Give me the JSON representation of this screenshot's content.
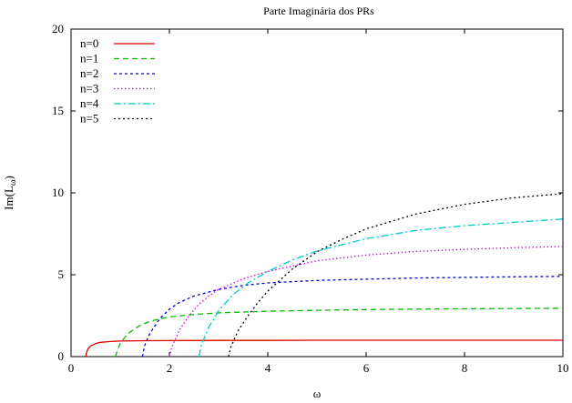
{
  "chart_data": {
    "type": "line",
    "title": "Parte Imaginária dos PRs",
    "xlabel": "ω",
    "ylabel": "Im(L",
    "ylabel_sub": "ω",
    "ylabel_close": ")",
    "xlim": [
      0,
      10
    ],
    "ylim": [
      0,
      20
    ],
    "xticks": [
      "0",
      "2",
      "4",
      "6",
      "8",
      "10"
    ],
    "yticks": [
      "0",
      "5",
      "10",
      "15",
      "20"
    ],
    "grid": false,
    "legend_position": "top-left",
    "series": [
      {
        "name": "n=0",
        "color": "#dd0000",
        "dash": "none",
        "x": [
          0.3,
          0.32,
          0.35,
          0.4,
          0.5,
          0.6,
          0.8,
          1.0,
          1.5,
          2.0,
          3.0,
          4.0,
          5.0,
          6.0,
          7.0,
          8.0,
          9.0,
          10.0
        ],
        "y": [
          0.0,
          0.3,
          0.5,
          0.65,
          0.8,
          0.87,
          0.92,
          0.95,
          0.97,
          0.98,
          0.99,
          0.99,
          1.0,
          1.0,
          1.0,
          1.0,
          1.0,
          1.0
        ]
      },
      {
        "name": "n=1",
        "color": "#00bb00",
        "dash": "6,4",
        "x": [
          0.9,
          0.95,
          1.0,
          1.1,
          1.2,
          1.4,
          1.6,
          1.8,
          2.0,
          2.5,
          3.0,
          4.0,
          5.0,
          6.0,
          7.0,
          8.0,
          9.0,
          10.0
        ],
        "y": [
          0.0,
          0.45,
          0.8,
          1.2,
          1.5,
          1.9,
          2.15,
          2.3,
          2.42,
          2.58,
          2.67,
          2.77,
          2.83,
          2.87,
          2.9,
          2.92,
          2.94,
          2.95
        ]
      },
      {
        "name": "n=2",
        "color": "#0000dd",
        "dash": "3,3",
        "x": [
          1.45,
          1.5,
          1.6,
          1.8,
          2.0,
          2.2,
          2.5,
          3.0,
          3.5,
          4.0,
          5.0,
          6.0,
          7.0,
          8.0,
          9.0,
          10.0
        ],
        "y": [
          0.0,
          0.7,
          1.4,
          2.3,
          2.9,
          3.3,
          3.7,
          4.1,
          4.35,
          4.5,
          4.65,
          4.73,
          4.8,
          4.84,
          4.87,
          4.9
        ]
      },
      {
        "name": "n=3",
        "color": "#dd00dd",
        "dash": "1.5,2.5",
        "x": [
          2.0,
          2.05,
          2.2,
          2.4,
          2.6,
          2.8,
          3.0,
          3.5,
          4.0,
          5.0,
          6.0,
          7.0,
          8.0,
          9.0,
          10.0
        ],
        "y": [
          0.0,
          0.6,
          1.6,
          2.5,
          3.2,
          3.7,
          4.1,
          4.75,
          5.2,
          5.85,
          6.2,
          6.42,
          6.55,
          6.65,
          6.72
        ]
      },
      {
        "name": "n=4",
        "color": "#00cccc",
        "dash": "8,3,2,3",
        "x": [
          2.6,
          2.65,
          2.8,
          3.0,
          3.3,
          3.6,
          4.0,
          4.5,
          5.0,
          6.0,
          7.0,
          8.0,
          9.0,
          10.0
        ],
        "y": [
          0.0,
          0.7,
          1.8,
          2.8,
          3.8,
          4.5,
          5.2,
          5.9,
          6.45,
          7.2,
          7.7,
          8.0,
          8.2,
          8.4
        ]
      },
      {
        "name": "n=5",
        "color": "#000000",
        "dash": "2,3",
        "x": [
          3.2,
          3.25,
          3.4,
          3.6,
          3.8,
          4.0,
          4.5,
          5.0,
          5.5,
          6.0,
          7.0,
          8.0,
          9.0,
          10.0
        ],
        "y": [
          0.0,
          0.6,
          1.6,
          2.5,
          3.3,
          4.0,
          5.35,
          6.4,
          7.15,
          7.8,
          8.7,
          9.3,
          9.7,
          9.95
        ]
      }
    ]
  }
}
